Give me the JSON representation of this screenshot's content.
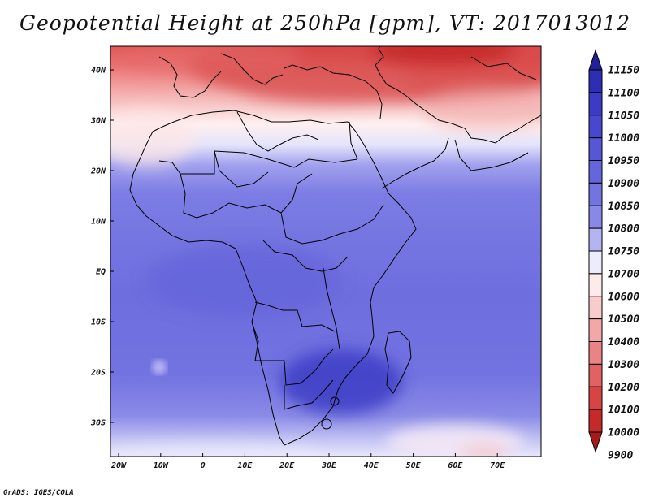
{
  "title": "Geopotential Height at 250hPa [gpm], VT: 2017013012",
  "credit": "GrADS: IGES/COLA",
  "map": {
    "lat_labels": [
      "40N",
      "30N",
      "20N",
      "10N",
      "EQ",
      "10S",
      "20S",
      "30S"
    ],
    "lon_labels": [
      "20W",
      "10W",
      "0",
      "10E",
      "20E",
      "30E",
      "40E",
      "50E",
      "60E",
      "70E"
    ]
  },
  "colorbar": {
    "labels": [
      "11150",
      "11100",
      "11050",
      "11000",
      "10950",
      "10900",
      "10850",
      "10800",
      "10750",
      "10700",
      "10600",
      "10500",
      "10400",
      "10300",
      "10200",
      "10100",
      "10000",
      "9900"
    ],
    "colors": [
      "#21209a",
      "#2e2eb4",
      "#3b3bc6",
      "#4747cf",
      "#5656d6",
      "#6565dc",
      "#7474e1",
      "#8888e6",
      "#b4b4f2",
      "#ececfc",
      "#fdeaea",
      "#f9cccc",
      "#f2a8a8",
      "#ea8484",
      "#e06262",
      "#d64444",
      "#c42a2a",
      "#a81a1a"
    ]
  }
}
